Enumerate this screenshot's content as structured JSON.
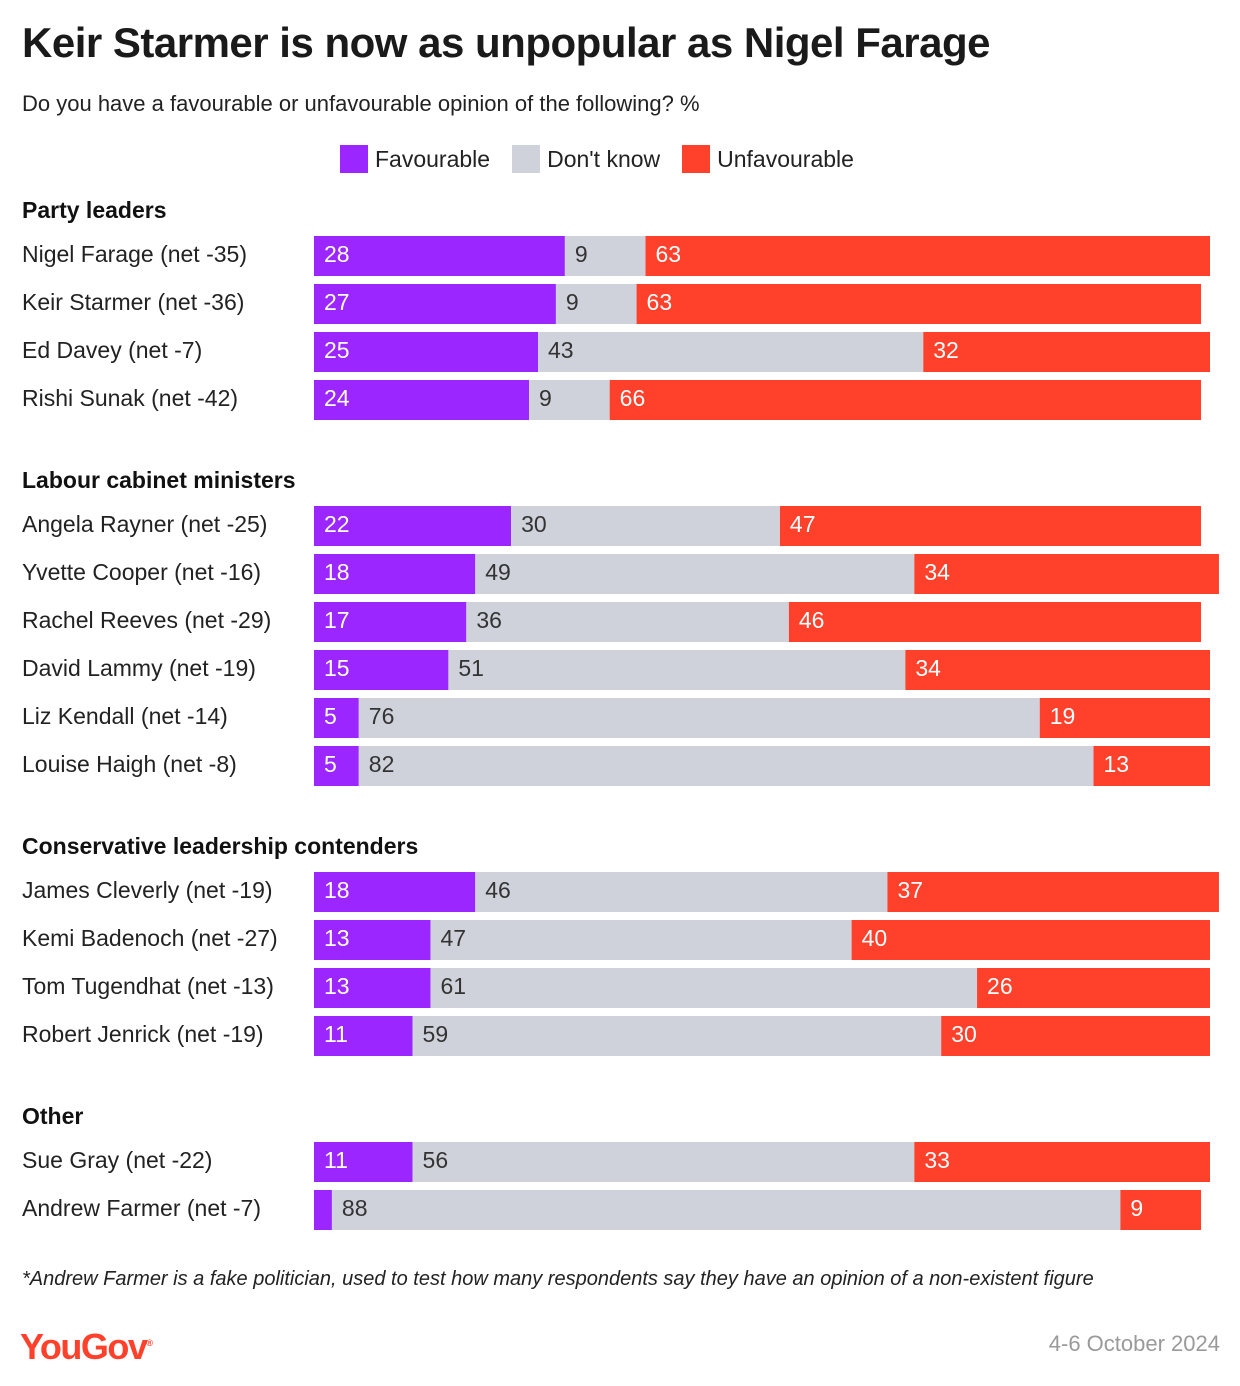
{
  "title": "Keir Starmer is now as unpopular as Nigel Farage",
  "subtitle": "Do you have a favourable or unfavourable opinion of the following? %",
  "legend": [
    {
      "label": "Favourable",
      "color": "#9b26ff"
    },
    {
      "label": "Don't know",
      "color": "#cfd2db"
    },
    {
      "label": "Unfavourable",
      "color": "#ff412c"
    }
  ],
  "footnote": "*Andrew Farmer is a fake politician, used to test how many respondents say they have an opinion of a non-existent figure",
  "source": {
    "logo": "YouGov",
    "logo_mark": "®",
    "date": "4-6 October 2024"
  },
  "chart_data": {
    "type": "bar",
    "orientation": "horizontal",
    "stacked": true,
    "series_names": [
      "Favourable",
      "Don't know",
      "Unfavourable"
    ],
    "colors": [
      "#9b26ff",
      "#cfd2db",
      "#ff412c"
    ],
    "xlim": [
      0,
      100
    ],
    "groups": [
      {
        "title": "Party leaders",
        "rows": [
          {
            "label": "Nigel Farage (net -35)",
            "values": [
              28,
              9,
              63
            ]
          },
          {
            "label": "Keir Starmer (net -36)",
            "values": [
              27,
              9,
              63
            ]
          },
          {
            "label": "Ed Davey (net -7)",
            "values": [
              25,
              43,
              32
            ]
          },
          {
            "label": "Rishi Sunak (net -42)",
            "values": [
              24,
              9,
              66
            ]
          }
        ]
      },
      {
        "title": "Labour cabinet ministers",
        "rows": [
          {
            "label": "Angela Rayner (net -25)",
            "values": [
              22,
              30,
              47
            ]
          },
          {
            "label": "Yvette Cooper (net -16)",
            "values": [
              18,
              49,
              34
            ]
          },
          {
            "label": "Rachel Reeves (net -29)",
            "values": [
              17,
              36,
              46
            ]
          },
          {
            "label": "David Lammy (net -19)",
            "values": [
              15,
              51,
              34
            ]
          },
          {
            "label": "Liz Kendall (net -14)",
            "values": [
              5,
              76,
              19
            ]
          },
          {
            "label": "Louise Haigh (net -8)",
            "values": [
              5,
              82,
              13
            ]
          }
        ]
      },
      {
        "title": "Conservative leadership contenders",
        "rows": [
          {
            "label": "James Cleverly (net -19)",
            "values": [
              18,
              46,
              37
            ]
          },
          {
            "label": "Kemi Badenoch (net -27)",
            "values": [
              13,
              47,
              40
            ]
          },
          {
            "label": "Tom Tugendhat (net -13)",
            "values": [
              13,
              61,
              26
            ]
          },
          {
            "label": "Robert Jenrick (net -19)",
            "values": [
              11,
              59,
              30
            ]
          }
        ]
      },
      {
        "title": "Other",
        "rows": [
          {
            "label": "Sue Gray (net -22)",
            "values": [
              11,
              56,
              33
            ]
          },
          {
            "label": "Andrew Farmer (net -7)",
            "values": [
              2,
              88,
              9
            ],
            "hide_labels": [
              true,
              false,
              false
            ]
          }
        ]
      }
    ]
  }
}
